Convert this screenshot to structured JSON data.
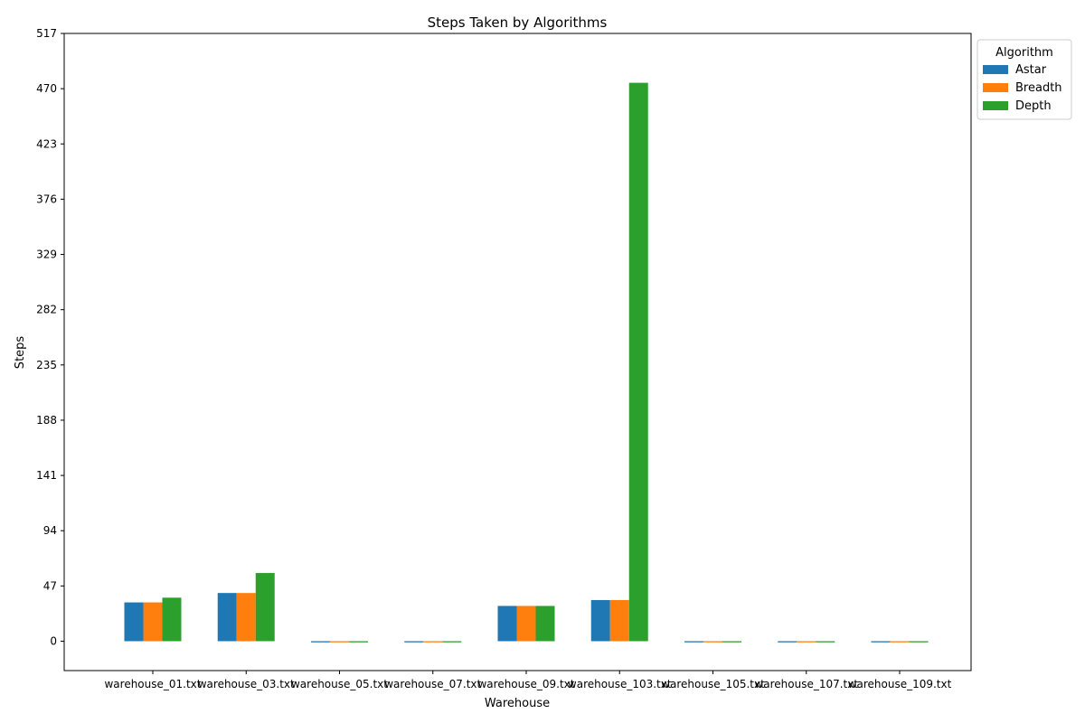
{
  "chart_data": {
    "type": "bar",
    "title": "Steps Taken by Algorithms",
    "xlabel": "Warehouse",
    "ylabel": "Steps",
    "categories": [
      "warehouse_01.txt",
      "warehouse_03.txt",
      "warehouse_05.txt",
      "warehouse_07.txt",
      "warehouse_09.txt",
      "warehouse_103.txt",
      "warehouse_105.txt",
      "warehouse_107.txt",
      "warehouse_109.txt"
    ],
    "series": [
      {
        "name": "Astar",
        "color": "#1f77b4",
        "values": [
          33,
          41,
          -1,
          -1,
          30,
          35,
          -1,
          -1,
          -1
        ]
      },
      {
        "name": "Breadth",
        "color": "#ff7f0e",
        "values": [
          33,
          41,
          -1,
          -1,
          30,
          35,
          -1,
          -1,
          -1
        ]
      },
      {
        "name": "Depth",
        "color": "#2ca02c",
        "values": [
          37,
          58,
          -1,
          -1,
          30,
          475,
          -1,
          -1,
          -1
        ]
      }
    ],
    "yticks": [
      0,
      47,
      94,
      141,
      188,
      235,
      282,
      329,
      376,
      423,
      470,
      517
    ],
    "ylim": [
      -25,
      517
    ],
    "legend_title": "Algorithm",
    "legend_position": "outside-upper-right",
    "grid": false
  }
}
